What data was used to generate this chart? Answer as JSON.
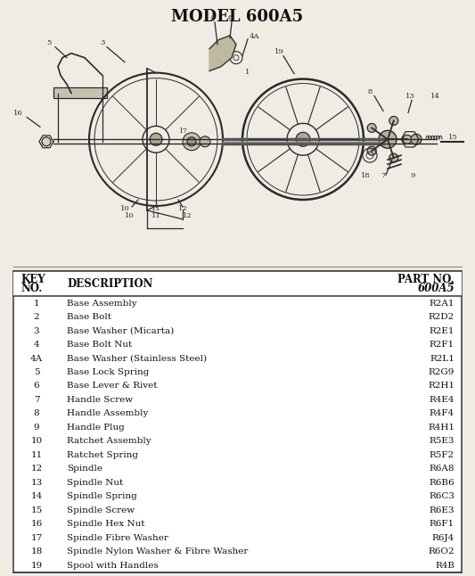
{
  "title": "MODEL 600A5",
  "bg_color": "#f0ece4",
  "table_bg": "#ffffff",
  "rows": [
    [
      "1",
      "Base Assembly",
      "R2A1"
    ],
    [
      "2",
      "Base Bolt",
      "R2D2"
    ],
    [
      "3",
      "Base Washer (Micarta)",
      "R2E1"
    ],
    [
      "4",
      "Base Bolt Nut",
      "R2F1"
    ],
    [
      "4A",
      "Base Washer (Stainless Steel)",
      "R2L1"
    ],
    [
      "5",
      "Base Lock Spring",
      "R2G9"
    ],
    [
      "6",
      "Base Lever & Rivet",
      "R2H1"
    ],
    [
      "7",
      "Handle Screw",
      "R4E4"
    ],
    [
      "8",
      "Handle Assembly",
      "R4F4"
    ],
    [
      "9",
      "Handle Plug",
      "R4H1"
    ],
    [
      "10",
      "Ratchet Assembly",
      "R5E3"
    ],
    [
      "11",
      "Ratchet Spring",
      "R5F2"
    ],
    [
      "12",
      "Spindle",
      "R6A8"
    ],
    [
      "13",
      "Spindle Nut",
      "R6B6"
    ],
    [
      "14",
      "Spindle Spring",
      "R6C3"
    ],
    [
      "15",
      "Spindle Screw",
      "R6E3"
    ],
    [
      "16",
      "Spindle Hex Nut",
      "R6F1"
    ],
    [
      "17",
      "Spindle Fibre Washer",
      "R6J4"
    ],
    [
      "18",
      "Spindle Nylon Washer & Fibre Washer",
      "R6O2"
    ],
    [
      "19",
      "Spool with Handles",
      "R4B"
    ]
  ],
  "title_fontsize": 13,
  "table_fontsize": 7.5,
  "header_fontsize": 8.5
}
